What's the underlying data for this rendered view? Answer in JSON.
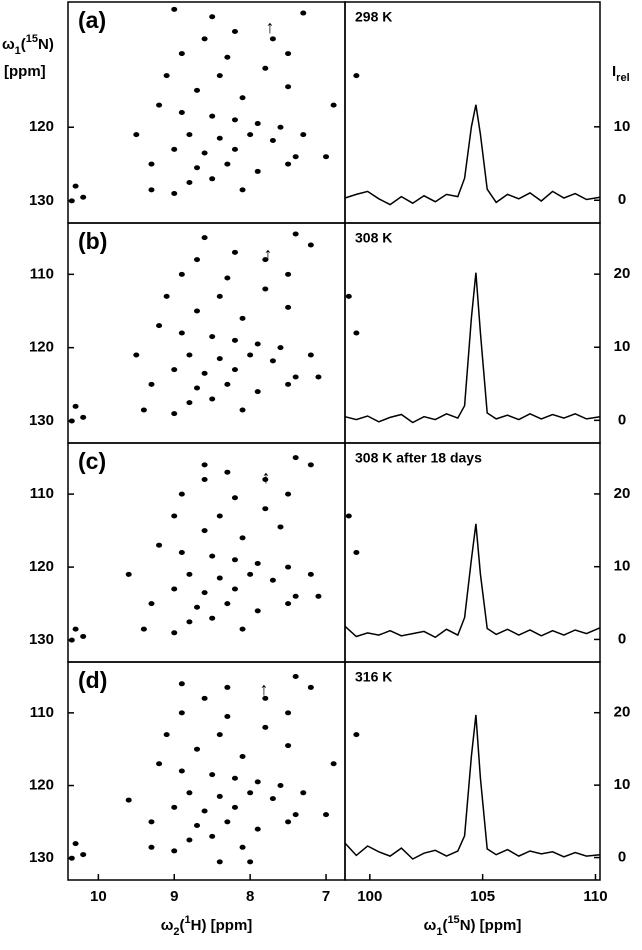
{
  "chart_data": [
    {
      "type": "scatter",
      "label": "(a)",
      "color": "#000000",
      "y_label": [
        "ω",
        "1",
        "(",
        "15",
        "N)"
      ],
      "y_label_unit": "[ppm]",
      "xlim": [
        10.4,
        6.75
      ],
      "ylim": [
        133,
        103
      ],
      "yticks": [
        120,
        130
      ],
      "x": [
        9.0,
        8.5,
        7.3,
        8.2,
        8.6,
        7.7,
        8.9,
        8.3,
        7.5,
        9.1,
        8.4,
        7.8,
        6.6,
        8.7,
        8.1,
        7.5,
        9.2,
        8.9,
        8.5,
        8.2,
        7.9,
        7.6,
        7.3,
        9.5,
        8.8,
        8.4,
        8.0,
        7.7,
        9.0,
        8.6,
        8.2,
        7.4,
        9.3,
        8.7,
        8.3,
        7.9,
        7.5,
        8.8,
        8.5,
        9.3,
        9.0,
        8.1,
        10.3,
        10.35,
        10.2,
        7.0,
        6.9
      ],
      "y": [
        104,
        105,
        104.5,
        107,
        108,
        108,
        110,
        110.5,
        110,
        113,
        113,
        112,
        113,
        115,
        116,
        114.5,
        117,
        118,
        118.5,
        119,
        119.5,
        120,
        121,
        121,
        121,
        121.5,
        121,
        121.8,
        123,
        123.5,
        123,
        124,
        125,
        125.5,
        125,
        126,
        125,
        127.5,
        127,
        128.5,
        129,
        128.5,
        128,
        130,
        129.5,
        124,
        117
      ]
    },
    {
      "type": "line",
      "label": "298 K",
      "color": "#000000",
      "y_label": [
        "I",
        "rel"
      ],
      "xlim": [
        98.9,
        110.2
      ],
      "ylim": [
        -3.1,
        27
      ],
      "yticks": [
        0,
        10
      ],
      "x": [
        98.9,
        99.4,
        99.9,
        100.4,
        100.9,
        101.4,
        101.9,
        102.4,
        102.9,
        103.4,
        103.9,
        104.2,
        104.5,
        104.7,
        104.9,
        105.2,
        105.6,
        106.1,
        106.6,
        107.1,
        107.6,
        108.1,
        108.6,
        109.1,
        109.6,
        110.2
      ],
      "values": [
        0.3,
        0.8,
        1.2,
        0.2,
        -0.6,
        0.5,
        -0.4,
        0.6,
        -0.2,
        0.8,
        0.5,
        3,
        10,
        13,
        9,
        1.5,
        -0.3,
        0.8,
        0.2,
        1.0,
        -0.1,
        1.2,
        0.3,
        0.9,
        0.1,
        0.4
      ]
    },
    {
      "type": "scatter",
      "label": "(b)",
      "color": "#000000",
      "xlim": [
        10.4,
        6.75
      ],
      "ylim": [
        133,
        103
      ],
      "yticks": [
        110,
        120,
        130
      ],
      "x": [
        8.6,
        7.4,
        7.2,
        8.2,
        8.7,
        7.8,
        8.9,
        8.3,
        7.5,
        9.1,
        8.4,
        7.8,
        6.7,
        8.7,
        8.1,
        7.5,
        9.2,
        8.9,
        8.5,
        8.2,
        7.9,
        7.6,
        7.2,
        9.5,
        8.8,
        8.4,
        8.0,
        7.7,
        9.0,
        8.6,
        8.2,
        7.4,
        9.3,
        8.7,
        8.3,
        7.9,
        7.5,
        8.8,
        8.5,
        9.4,
        9.0,
        8.1,
        10.3,
        10.35,
        10.2,
        7.1,
        6.6
      ],
      "y": [
        105,
        104.5,
        106,
        107,
        108,
        108,
        110,
        110.5,
        110,
        113,
        113,
        112,
        113,
        115,
        116,
        114.5,
        117,
        118,
        118.5,
        119,
        119.5,
        120,
        121,
        121,
        121,
        121.5,
        121,
        121.8,
        123,
        123.5,
        123,
        124,
        125,
        125.5,
        125,
        126,
        125,
        127.5,
        127,
        128.5,
        129,
        128.5,
        128,
        130,
        129.5,
        124,
        118
      ]
    },
    {
      "type": "line",
      "label": "308 K",
      "color": "#000000",
      "xlim": [
        98.9,
        110.2
      ],
      "ylim": [
        -3.1,
        27
      ],
      "yticks": [
        0,
        10,
        20
      ],
      "x": [
        98.9,
        99.4,
        99.9,
        100.4,
        100.9,
        101.4,
        101.9,
        102.4,
        102.9,
        103.4,
        103.9,
        104.2,
        104.5,
        104.7,
        104.9,
        105.2,
        105.6,
        106.1,
        106.6,
        107.1,
        107.6,
        108.1,
        108.6,
        109.1,
        109.6,
        110.2
      ],
      "values": [
        0.5,
        0.1,
        0.6,
        -0.2,
        0.4,
        0.8,
        -0.3,
        0.5,
        0.1,
        0.9,
        0.3,
        2,
        14,
        20.2,
        12,
        1.0,
        0.2,
        0.7,
        0.1,
        0.9,
        0.2,
        0.8,
        0.3,
        0.9,
        0.2,
        0.5
      ]
    },
    {
      "type": "scatter",
      "label": "(c)",
      "color": "#000000",
      "xlim": [
        10.4,
        6.75
      ],
      "ylim": [
        133,
        103
      ],
      "yticks": [
        110,
        120,
        130
      ],
      "x": [
        8.6,
        7.4,
        7.2,
        8.3,
        8.6,
        7.8,
        8.9,
        8.2,
        7.5,
        9.0,
        8.4,
        7.8,
        6.7,
        8.6,
        8.1,
        7.6,
        9.2,
        8.9,
        8.5,
        8.2,
        7.9,
        7.5,
        7.2,
        9.6,
        8.8,
        8.4,
        8.0,
        7.7,
        9.0,
        8.6,
        8.2,
        7.4,
        9.3,
        8.7,
        8.3,
        7.9,
        7.5,
        8.8,
        8.5,
        9.4,
        9.0,
        8.1,
        10.3,
        10.35,
        10.2,
        7.1,
        6.6
      ],
      "y": [
        106,
        105,
        106,
        107,
        108,
        108,
        110,
        110.5,
        110,
        113,
        113,
        112,
        113,
        115,
        116,
        114.5,
        117,
        118,
        118.5,
        119,
        119.5,
        120,
        121,
        121,
        121,
        121.5,
        121,
        121.8,
        123,
        123.5,
        123,
        124,
        125,
        125.5,
        125,
        126,
        125,
        127.5,
        127,
        128.5,
        129,
        128.5,
        128.5,
        130,
        129.5,
        124,
        118
      ]
    },
    {
      "type": "line",
      "label": "308 K after 18 days",
      "color": "#000000",
      "xlim": [
        98.9,
        110.2
      ],
      "ylim": [
        -3.1,
        27
      ],
      "yticks": [
        0,
        10,
        20
      ],
      "x": [
        98.9,
        99.4,
        99.9,
        100.4,
        100.9,
        101.4,
        101.9,
        102.4,
        102.9,
        103.4,
        103.9,
        104.2,
        104.5,
        104.7,
        104.9,
        105.2,
        105.6,
        106.1,
        106.6,
        107.1,
        107.6,
        108.1,
        108.6,
        109.1,
        109.6,
        110.2
      ],
      "values": [
        1.8,
        0.4,
        0.9,
        0.6,
        1.2,
        0.5,
        0.8,
        1.1,
        0.3,
        1.4,
        0.6,
        3,
        11,
        15.9,
        9,
        1.5,
        0.7,
        1.4,
        0.6,
        1.3,
        0.5,
        1.2,
        0.6,
        1.3,
        0.8,
        1.6
      ]
    },
    {
      "type": "scatter",
      "label": "(d)",
      "color": "#000000",
      "x_label": [
        "ω",
        "2",
        "(",
        "1",
        "H) [ppm]"
      ],
      "xlim": [
        10.4,
        6.75
      ],
      "ylim": [
        133,
        103
      ],
      "yticks": [
        110,
        120,
        130
      ],
      "xticks": [
        10,
        9,
        8,
        7
      ],
      "x": [
        8.9,
        8.3,
        7.4,
        7.2,
        8.6,
        7.8,
        8.9,
        8.3,
        7.5,
        9.1,
        8.4,
        7.8,
        6.6,
        8.7,
        8.1,
        7.5,
        9.2,
        8.9,
        8.5,
        8.2,
        7.9,
        7.6,
        7.3,
        9.6,
        8.8,
        8.4,
        8.0,
        7.7,
        9.0,
        8.6,
        8.2,
        7.4,
        9.3,
        8.7,
        8.3,
        7.9,
        7.5,
        8.8,
        8.5,
        9.3,
        9.0,
        8.1,
        10.3,
        10.35,
        10.2,
        7.0,
        6.9,
        8.4,
        8.0
      ],
      "y": [
        106,
        106.5,
        105,
        106.5,
        108,
        108,
        110,
        110.5,
        110,
        113,
        113,
        112,
        113,
        115,
        116,
        114.5,
        117,
        118,
        118.5,
        119,
        119.5,
        120,
        121,
        122,
        121,
        121.5,
        121,
        121.8,
        123,
        123.5,
        123,
        124,
        125,
        125.5,
        125,
        126,
        125,
        127.5,
        127,
        128.5,
        129,
        128.5,
        128,
        130,
        129.5,
        124,
        117,
        130.5,
        130.5
      ]
    },
    {
      "type": "line",
      "label": "316 K",
      "color": "#000000",
      "x_label": [
        "ω",
        "1",
        "(",
        "15",
        "N) [ppm]"
      ],
      "xlim": [
        98.9,
        110.2
      ],
      "ylim": [
        -3.1,
        27
      ],
      "yticks": [
        0,
        10,
        20
      ],
      "xticks": [
        100,
        105,
        110
      ],
      "x": [
        98.9,
        99.4,
        99.9,
        100.4,
        100.9,
        101.4,
        101.9,
        102.4,
        102.9,
        103.4,
        103.9,
        104.2,
        104.5,
        104.7,
        104.9,
        105.2,
        105.6,
        106.1,
        106.6,
        107.1,
        107.6,
        108.1,
        108.6,
        109.1,
        109.6,
        110.2
      ],
      "values": [
        2,
        0.3,
        1.6,
        0.8,
        0.2,
        1.3,
        -0.2,
        0.6,
        1.0,
        0.2,
        0.9,
        3,
        14,
        19.7,
        11,
        1.2,
        0.4,
        1.1,
        0.2,
        0.9,
        0.5,
        0.8,
        0.1,
        0.7,
        0.2,
        0.4
      ]
    }
  ]
}
